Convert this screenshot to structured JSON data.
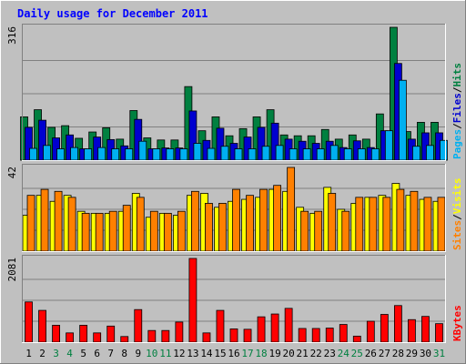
{
  "chart_data": [
    {
      "type": "bar",
      "title": "Daily usage for December 2011",
      "panel": "pages-files-hits",
      "max_label": "316",
      "ylim": [
        0,
        316
      ],
      "grid": true,
      "categories": [
        "1",
        "2",
        "3",
        "4",
        "5",
        "6",
        "7",
        "8",
        "9",
        "10",
        "11",
        "12",
        "13",
        "14",
        "15",
        "16",
        "17",
        "18",
        "19",
        "20",
        "21",
        "22",
        "23",
        "24",
        "25",
        "26",
        "27",
        "28",
        "29",
        "30",
        "31"
      ],
      "weekend_days": [
        "3",
        "4",
        "10",
        "11",
        "17",
        "18",
        "24",
        "25",
        "31"
      ],
      "legend": [
        "Hits",
        "Files",
        "Pages"
      ],
      "series": [
        {
          "name": "Hits",
          "color": "#008040",
          "values": [
            103,
            120,
            78,
            82,
            52,
            67,
            77,
            50,
            118,
            53,
            48,
            48,
            175,
            70,
            103,
            58,
            75,
            103,
            120,
            60,
            58,
            58,
            73,
            50,
            60,
            50,
            110,
            316,
            68,
            90,
            90
          ]
        },
        {
          "name": "Files",
          "color": "#0000d0",
          "values": [
            78,
            95,
            53,
            60,
            27,
            55,
            49,
            34,
            97,
            27,
            29,
            29,
            117,
            47,
            76,
            40,
            55,
            78,
            88,
            50,
            45,
            40,
            45,
            30,
            46,
            30,
            70,
            230,
            50,
            65,
            65
          ]
        },
        {
          "name": "Pages",
          "color": "#00b0f0",
          "values": [
            28,
            35,
            27,
            30,
            27,
            30,
            27,
            27,
            45,
            27,
            27,
            27,
            40,
            28,
            33,
            27,
            27,
            33,
            35,
            27,
            27,
            27,
            35,
            27,
            27,
            27,
            70,
            190,
            33,
            35,
            47
          ]
        }
      ]
    },
    {
      "type": "bar",
      "panel": "sites-visits",
      "max_label": "42",
      "ylim": [
        0,
        42
      ],
      "grid": true,
      "categories": [
        "1",
        "2",
        "3",
        "4",
        "5",
        "6",
        "7",
        "8",
        "9",
        "10",
        "11",
        "12",
        "13",
        "14",
        "15",
        "16",
        "17",
        "18",
        "19",
        "20",
        "21",
        "22",
        "23",
        "24",
        "25",
        "26",
        "27",
        "28",
        "29",
        "30",
        "31"
      ],
      "legend": [
        "Visits",
        "Sites"
      ],
      "series": [
        {
          "name": "Visits",
          "color": "#ffff00",
          "values": [
            18,
            28,
            25,
            28,
            20,
            19,
            19,
            20,
            29,
            17,
            19,
            18,
            28,
            29,
            22,
            25,
            26,
            27,
            31,
            30,
            22,
            19,
            32,
            21,
            24,
            27,
            28,
            34,
            28,
            26,
            25
          ]
        },
        {
          "name": "Sites",
          "color": "#ff8000",
          "values": [
            28,
            31,
            30,
            27,
            19,
            19,
            20,
            23,
            27,
            20,
            19,
            20,
            30,
            24,
            24,
            31,
            28,
            31,
            33,
            42,
            20,
            20,
            29,
            20,
            27,
            27,
            27,
            31,
            30,
            27,
            27
          ]
        }
      ]
    },
    {
      "type": "bar",
      "panel": "kbytes",
      "max_label": "2081",
      "ylim": [
        0,
        2081
      ],
      "grid": true,
      "categories": [
        "1",
        "2",
        "3",
        "4",
        "5",
        "6",
        "7",
        "8",
        "9",
        "10",
        "11",
        "12",
        "13",
        "14",
        "15",
        "16",
        "17",
        "18",
        "19",
        "20",
        "21",
        "22",
        "23",
        "24",
        "25",
        "26",
        "27",
        "28",
        "29",
        "30",
        "31"
      ],
      "legend": [
        "KBytes"
      ],
      "series": [
        {
          "name": "KBytes",
          "color": "#ff0000",
          "values": [
            1000,
            790,
            420,
            230,
            420,
            230,
            400,
            140,
            810,
            290,
            290,
            500,
            2081,
            230,
            790,
            330,
            320,
            630,
            700,
            840,
            340,
            340,
            350,
            440,
            150,
            520,
            690,
            910,
            560,
            640,
            460
          ]
        }
      ]
    }
  ]
}
